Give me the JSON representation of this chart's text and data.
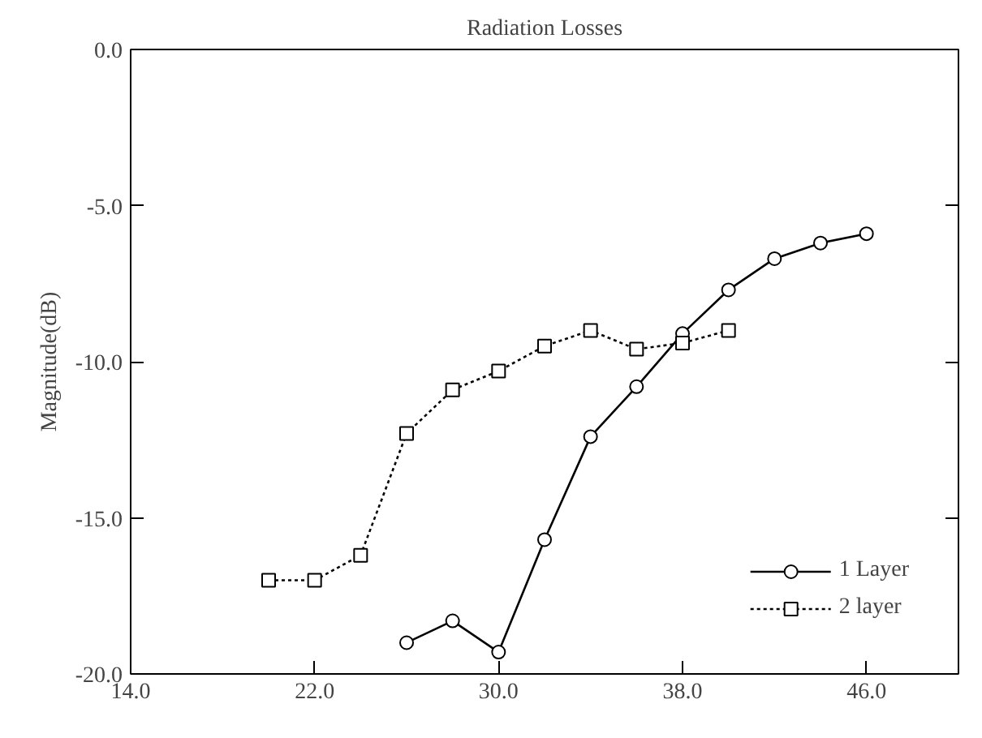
{
  "chart_data": {
    "type": "line",
    "title": "Radiation Losses",
    "ylabel": "Magnitude(dB)",
    "xlim": [
      14,
      50
    ],
    "ylim": [
      -20,
      0
    ],
    "xticks": [
      {
        "value": 14,
        "label": "14.0"
      },
      {
        "value": 22,
        "label": "22.0"
      },
      {
        "value": 30,
        "label": "30.0"
      },
      {
        "value": 38,
        "label": "38.0"
      },
      {
        "value": 46,
        "label": "46.0"
      }
    ],
    "yticks": [
      {
        "value": -20,
        "label": "-20.0"
      },
      {
        "value": -15,
        "label": "-15.0"
      },
      {
        "value": -10,
        "label": "-10.0"
      },
      {
        "value": -5,
        "label": "-5.0"
      },
      {
        "value": 0,
        "label": "0.0"
      }
    ],
    "grid": false,
    "legend": "bottom right",
    "series": [
      {
        "name": "1 Layer",
        "color": "#000000",
        "marker": "circle",
        "line_style": "solid",
        "x": [
          26,
          28,
          30,
          32,
          34,
          36,
          38,
          40,
          42,
          44,
          46
        ],
        "values": [
          -19.0,
          -18.3,
          -19.3,
          -15.7,
          -12.4,
          -10.8,
          -9.1,
          -7.7,
          -6.7,
          -6.2,
          -5.9
        ]
      },
      {
        "name": "2 layer",
        "color": "#000000",
        "marker": "square",
        "line_style": "dotted",
        "x": [
          20,
          22,
          24,
          26,
          28,
          30,
          32,
          34,
          36,
          38,
          40
        ],
        "values": [
          -17.0,
          -17.0,
          -16.2,
          -12.3,
          -10.9,
          -10.3,
          -9.5,
          -9.0,
          -9.6,
          -9.4,
          -9.0
        ]
      }
    ]
  }
}
